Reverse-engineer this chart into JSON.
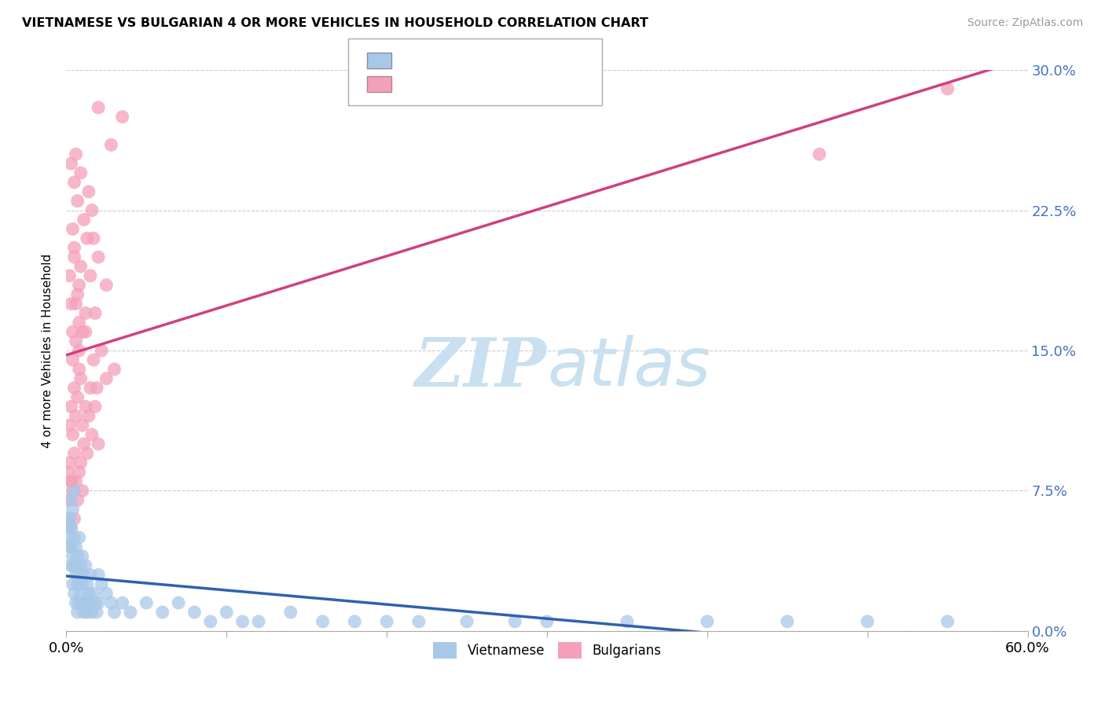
{
  "title": "VIETNAMESE VS BULGARIAN 4 OR MORE VEHICLES IN HOUSEHOLD CORRELATION CHART",
  "source": "Source: ZipAtlas.com",
  "ylabel": "4 or more Vehicles in Household",
  "ytick_vals": [
    0.0,
    7.5,
    15.0,
    22.5,
    30.0
  ],
  "xlim": [
    0.0,
    60.0
  ],
  "ylim": [
    0.0,
    30.0
  ],
  "color_vietnamese": "#A8C8E8",
  "color_bulgarian": "#F4A0B8",
  "color_trendline_vietnamese": "#3060B0",
  "color_trendline_bulgarian": "#D04080",
  "watermark_color": "#C8E0F0",
  "vietnamese_x": [
    0.1,
    0.2,
    0.2,
    0.3,
    0.3,
    0.3,
    0.4,
    0.4,
    0.4,
    0.5,
    0.5,
    0.5,
    0.5,
    0.6,
    0.6,
    0.6,
    0.7,
    0.7,
    0.7,
    0.8,
    0.8,
    0.8,
    0.9,
    0.9,
    1.0,
    1.0,
    1.0,
    1.1,
    1.1,
    1.2,
    1.2,
    1.3,
    1.3,
    1.4,
    1.5,
    1.5,
    1.6,
    1.7,
    1.8,
    1.9,
    2.0,
    2.0,
    2.2,
    2.5,
    2.8,
    3.0,
    3.5,
    4.0,
    5.0,
    6.0,
    7.0,
    8.0,
    9.0,
    10.0,
    11.0,
    12.0,
    14.0,
    16.0,
    18.0,
    20.0,
    22.0,
    25.0,
    28.0,
    30.0,
    35.0,
    40.0,
    45.0,
    50.0,
    55.0,
    0.15,
    0.25,
    0.35,
    0.45
  ],
  "vietnamese_y": [
    5.0,
    4.5,
    6.0,
    3.5,
    5.5,
    7.0,
    2.5,
    4.0,
    6.5,
    2.0,
    3.5,
    5.0,
    7.5,
    1.5,
    3.0,
    4.5,
    1.0,
    2.5,
    4.0,
    1.5,
    3.0,
    5.0,
    2.0,
    3.5,
    1.5,
    2.5,
    4.0,
    1.0,
    3.0,
    1.5,
    3.5,
    1.0,
    2.5,
    2.0,
    1.5,
    3.0,
    1.0,
    2.0,
    1.5,
    1.0,
    1.5,
    3.0,
    2.5,
    2.0,
    1.5,
    1.0,
    1.5,
    1.0,
    1.5,
    1.0,
    1.5,
    1.0,
    0.5,
    1.0,
    0.5,
    0.5,
    1.0,
    0.5,
    0.5,
    0.5,
    0.5,
    0.5,
    0.5,
    0.5,
    0.5,
    0.5,
    0.5,
    0.5,
    0.5,
    6.0,
    5.5,
    4.5,
    3.5
  ],
  "bulgarian_x": [
    0.1,
    0.1,
    0.2,
    0.2,
    0.2,
    0.3,
    0.3,
    0.3,
    0.4,
    0.4,
    0.5,
    0.5,
    0.5,
    0.6,
    0.6,
    0.7,
    0.7,
    0.8,
    0.8,
    0.9,
    0.9,
    1.0,
    1.0,
    1.1,
    1.2,
    1.3,
    1.4,
    1.5,
    1.6,
    1.7,
    1.8,
    2.0,
    2.2,
    2.5,
    3.0,
    1.2,
    1.8,
    2.5,
    0.6,
    0.8,
    0.4,
    0.3,
    1.5,
    2.0,
    0.7,
    1.0,
    0.5,
    0.9,
    1.3,
    0.6,
    1.1,
    0.8,
    0.4,
    0.2,
    0.7,
    1.6,
    0.5,
    0.3,
    1.4,
    0.9,
    2.8,
    3.5,
    0.6,
    2.0,
    1.7,
    0.5,
    0.8,
    1.2,
    0.4,
    55.0,
    47.0,
    0.3,
    1.9
  ],
  "bulgarian_y": [
    7.0,
    8.5,
    6.0,
    9.0,
    11.0,
    5.5,
    8.0,
    12.0,
    7.5,
    10.5,
    6.0,
    9.5,
    13.0,
    8.0,
    11.5,
    7.0,
    12.5,
    8.5,
    14.0,
    9.0,
    13.5,
    7.5,
    11.0,
    10.0,
    12.0,
    9.5,
    11.5,
    13.0,
    10.5,
    14.5,
    12.0,
    10.0,
    15.0,
    13.5,
    14.0,
    16.0,
    17.0,
    18.5,
    15.5,
    16.5,
    14.5,
    17.5,
    19.0,
    20.0,
    18.0,
    16.0,
    20.5,
    19.5,
    21.0,
    17.5,
    22.0,
    18.5,
    21.5,
    19.0,
    23.0,
    22.5,
    24.0,
    25.0,
    23.5,
    24.5,
    26.0,
    27.5,
    25.5,
    28.0,
    21.0,
    20.0,
    15.0,
    17.0,
    16.0,
    29.0,
    25.5,
    8.0,
    13.0
  ]
}
